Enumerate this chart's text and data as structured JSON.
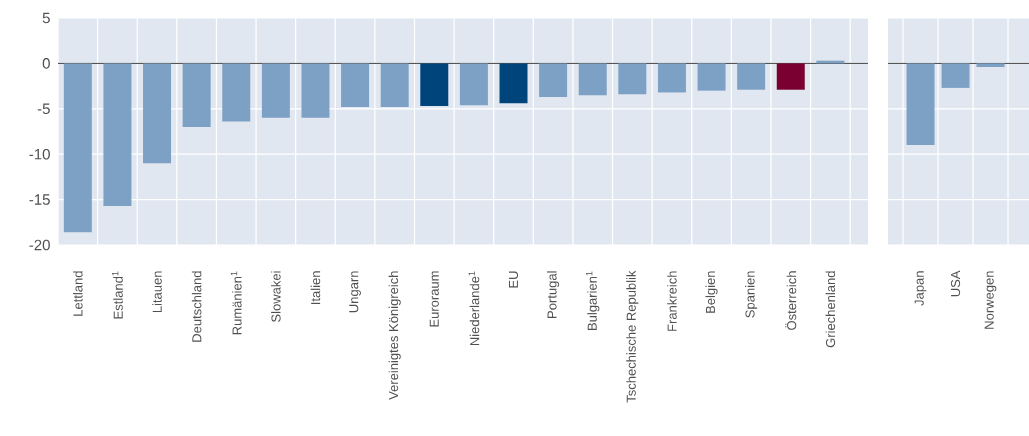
{
  "chart_data": [
    {
      "type": "bar",
      "categories": [
        "Lettland",
        "Estland$^{1}$",
        "Litauen",
        "Deutschland",
        "Rumänien$^{1}$",
        "Slowakei",
        "Italien",
        "Ungarn",
        "Vereinigtes Königreich",
        "Euroraum",
        "Niederlande$^{1}$",
        "EU",
        "Portugal",
        "Bulgarien$^{1}$",
        "Tschechische Republik",
        "Frankreich",
        "Belgien",
        "Spanien",
        "Österreich",
        "Griechenland"
      ],
      "values": [
        -18.6,
        -15.7,
        -11.0,
        -7.0,
        -6.4,
        -6.0,
        -6.0,
        -4.8,
        -4.8,
        -4.7,
        -4.6,
        -4.4,
        -3.7,
        -3.5,
        -3.4,
        -3.2,
        -3.0,
        -2.9,
        -2.9,
        0.3
      ],
      "colors": [
        "#7da1c4",
        "#7da1c4",
        "#7da1c4",
        "#7da1c4",
        "#7da1c4",
        "#7da1c4",
        "#7da1c4",
        "#7da1c4",
        "#7da1c4",
        "#00447c",
        "#7da1c4",
        "#00447c",
        "#7da1c4",
        "#7da1c4",
        "#7da1c4",
        "#7da1c4",
        "#7da1c4",
        "#7da1c4",
        "#7a0032",
        "#7da1c4"
      ],
      "ylim": [
        -20,
        5
      ],
      "yticks": [
        -20,
        -15,
        -10,
        -5,
        0,
        5
      ],
      "grid": true
    },
    {
      "type": "bar",
      "categories": [
        "Japan",
        "USA",
        "Norwegen"
      ],
      "values": [
        -9.0,
        -2.7,
        -0.4
      ],
      "colors": [
        "#7da1c4",
        "#7da1c4",
        "#7da1c4"
      ],
      "ylim": [
        -20,
        5
      ],
      "yticks": [
        -20,
        -15,
        -10,
        -5,
        0,
        5
      ],
      "grid": true,
      "tick_labels": "x"
    }
  ]
}
